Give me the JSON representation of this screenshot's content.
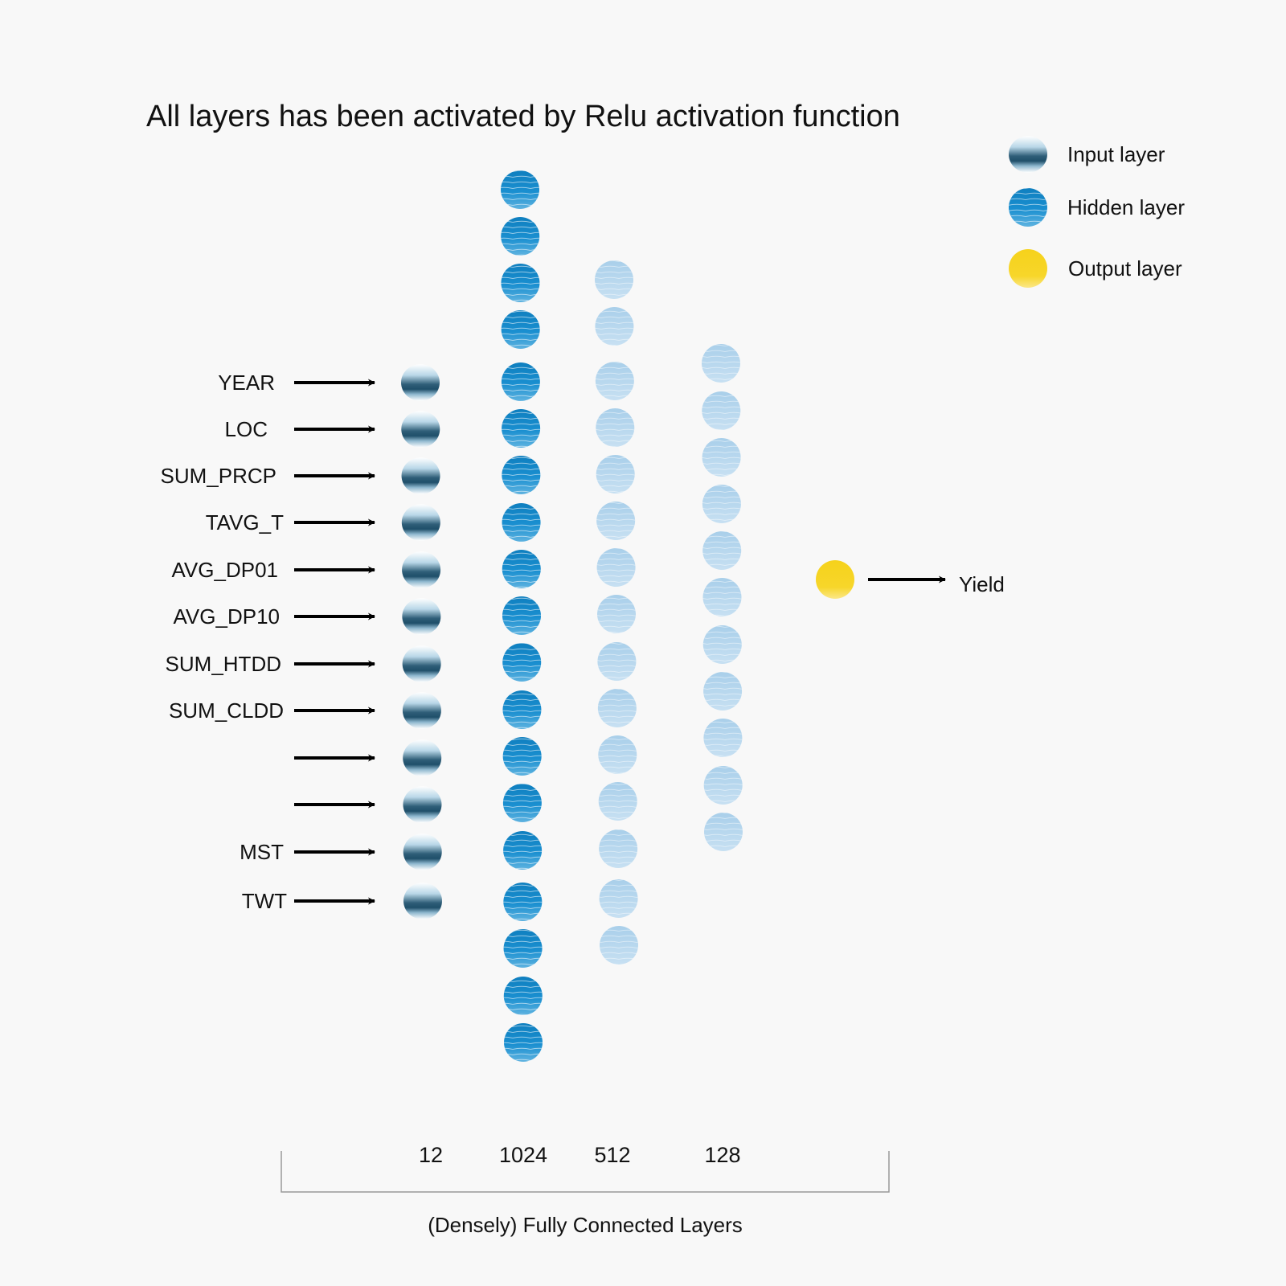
{
  "title": "All layers has been activated by Relu activation function",
  "legend": {
    "items": [
      {
        "kind": "input",
        "label": "Input layer"
      },
      {
        "kind": "hidden",
        "label": "Hidden layer"
      },
      {
        "kind": "output",
        "label": "Output layer"
      }
    ]
  },
  "inputs": {
    "labels": [
      "YEAR",
      "LOC",
      "SUM_PRCP",
      "TAVG_T",
      "AVG_DP01",
      "AVG_DP10",
      "SUM_HTDD",
      "SUM_CLDD",
      "",
      "",
      "MST",
      "TWT"
    ]
  },
  "output": {
    "label": "Yield"
  },
  "layers": [
    {
      "kind": "input",
      "units": "12",
      "nodes_drawn": 12
    },
    {
      "kind": "hidden-dark",
      "units": "1024",
      "nodes_drawn": 19
    },
    {
      "kind": "hidden-light",
      "units": "512",
      "nodes_drawn": 15
    },
    {
      "kind": "hidden-light",
      "units": "128",
      "nodes_drawn": 11
    },
    {
      "kind": "output",
      "units": "",
      "nodes_drawn": 1
    }
  ],
  "footer": {
    "label": "(Densely) Fully Connected Layers"
  },
  "colors": {
    "background": "#f8f8f8",
    "input_dark": "#1f4f6a",
    "hidden_dark": "#1288c9",
    "hidden_light": "#9fc9e8",
    "output": "#f5d01a"
  }
}
